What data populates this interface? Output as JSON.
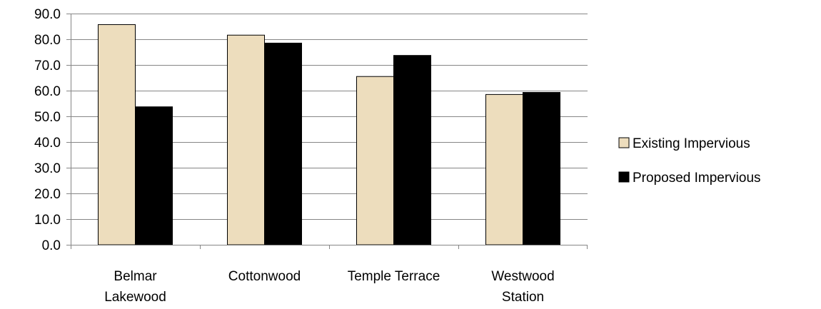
{
  "chart_data": {
    "type": "bar",
    "title": "",
    "xlabel": "",
    "ylabel": "",
    "ylim": [
      0,
      90
    ],
    "yticks": [
      0,
      10,
      20,
      30,
      40,
      50,
      60,
      70,
      80,
      90
    ],
    "ytick_labels": [
      "0.0",
      "10.0",
      "20.0",
      "30.0",
      "40.0",
      "50.0",
      "60.0",
      "70.0",
      "80.0",
      "90.0"
    ],
    "grid": true,
    "legend_position": "right",
    "categories": [
      [
        "Belmar",
        "Lakewood"
      ],
      [
        "Cottonwood"
      ],
      [
        "Temple Terrace"
      ],
      [
        "Westwood",
        "Station"
      ]
    ],
    "series": [
      {
        "name": "Existing Impervious",
        "color": "#EDDDBD",
        "values": [
          85.7,
          81.6,
          65.5,
          58.5
        ]
      },
      {
        "name": "Proposed Impervious",
        "color": "#000000",
        "values": [
          53.7,
          78.5,
          73.7,
          59.3
        ]
      }
    ]
  }
}
